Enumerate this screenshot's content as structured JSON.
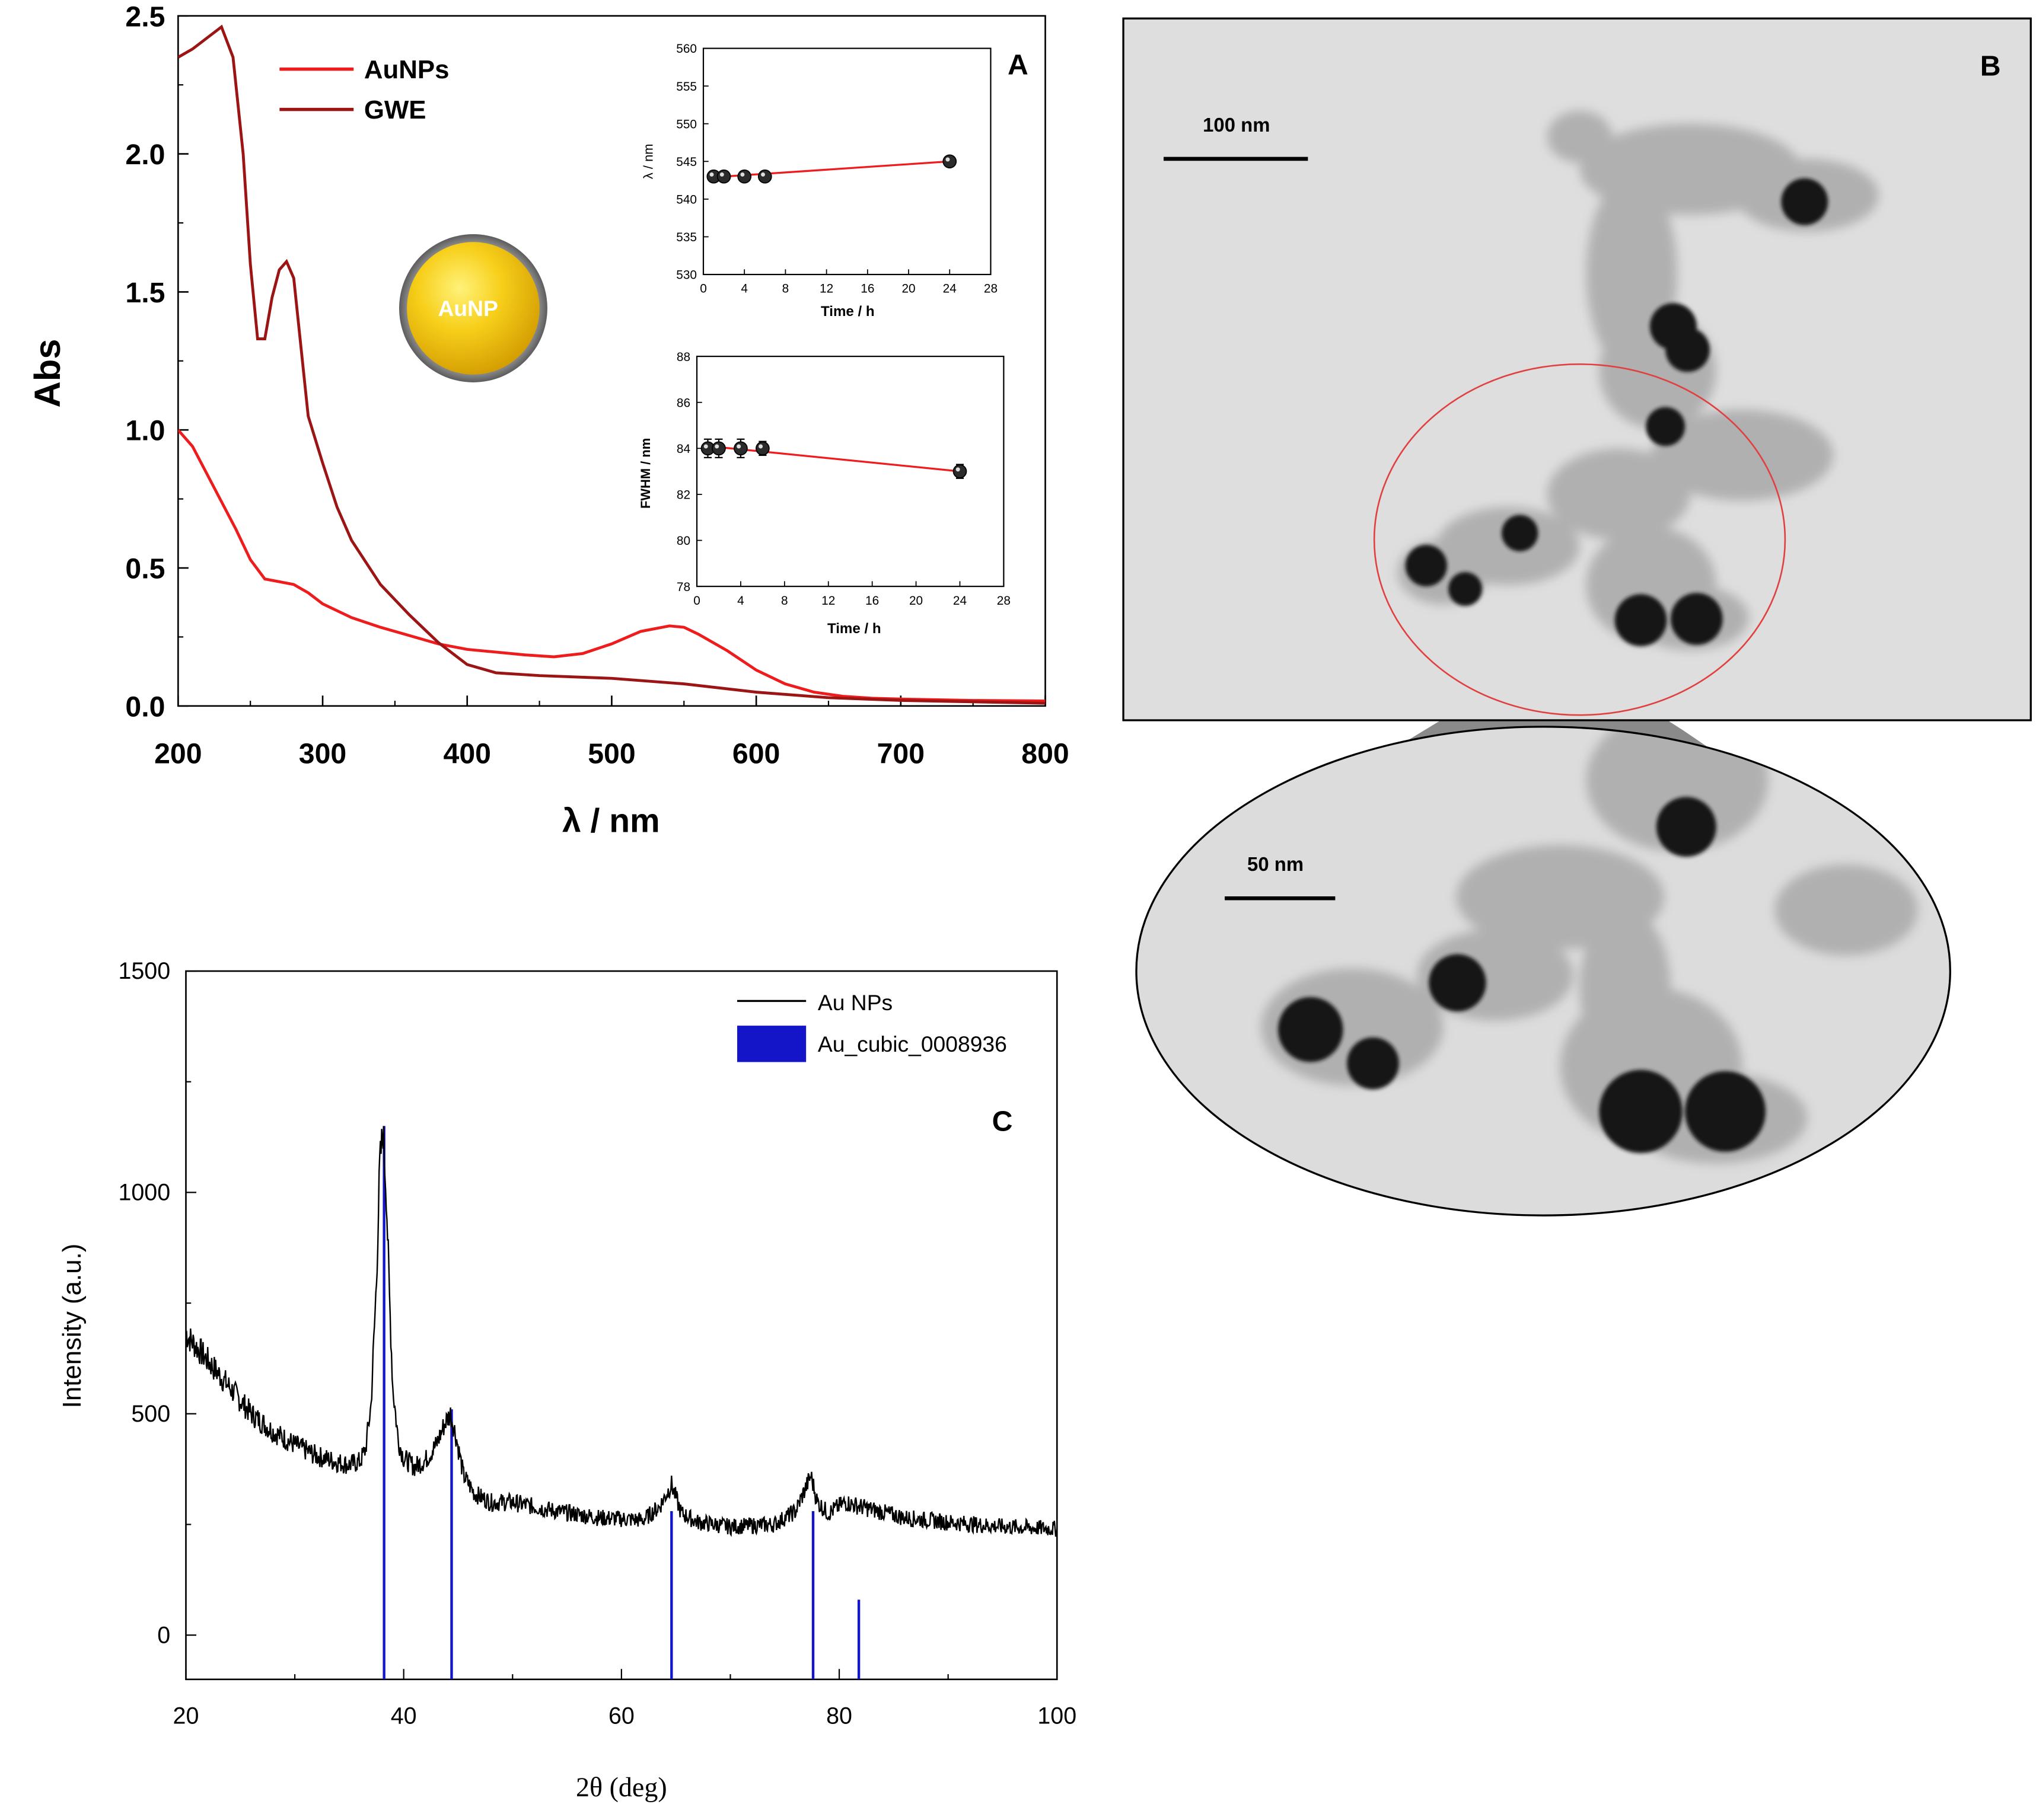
{
  "colors": {
    "aunps": "#ee1c1c",
    "gwe": "#9b1515",
    "xrd": "#000000",
    "ref": "#1414c8",
    "inset_fit": "#ee1c1c",
    "circle": "#e04040",
    "tem_bg": "#dcdcdc",
    "particle": "#111111",
    "shell": "#9a9a9a"
  },
  "panel_a": {
    "label": "A",
    "nanoparticle_label": "AuNP",
    "chart_data": {
      "type": "line",
      "title": "",
      "xlabel": "λ / nm",
      "ylabel": "Abs",
      "xlim": [
        200,
        800
      ],
      "ylim": [
        0,
        2.5
      ],
      "x_ticks": [
        "200",
        "300",
        "400",
        "500",
        "600",
        "700",
        "800"
      ],
      "y_ticks": [
        "0.0",
        "0.5",
        "1.0",
        "1.5",
        "2.0",
        "2.5"
      ],
      "legend_position": "top-left",
      "series": [
        {
          "name": "AuNPs",
          "color_key": "aunps",
          "x": [
            200,
            210,
            220,
            230,
            240,
            250,
            260,
            270,
            280,
            290,
            300,
            320,
            340,
            360,
            380,
            400,
            420,
            440,
            460,
            480,
            500,
            520,
            540,
            550,
            560,
            580,
            600,
            620,
            640,
            660,
            680,
            700,
            750,
            800
          ],
          "y": [
            1.0,
            0.94,
            0.84,
            0.74,
            0.64,
            0.53,
            0.46,
            0.45,
            0.44,
            0.41,
            0.37,
            0.32,
            0.285,
            0.255,
            0.225,
            0.205,
            0.195,
            0.185,
            0.178,
            0.19,
            0.225,
            0.27,
            0.29,
            0.285,
            0.26,
            0.2,
            0.13,
            0.08,
            0.05,
            0.035,
            0.028,
            0.025,
            0.02,
            0.018
          ]
        },
        {
          "name": "GWE",
          "color_key": "gwe",
          "x": [
            200,
            210,
            220,
            230,
            238,
            245,
            250,
            255,
            260,
            265,
            270,
            275,
            280,
            285,
            290,
            300,
            310,
            320,
            340,
            360,
            380,
            400,
            420,
            450,
            500,
            550,
            600,
            650,
            700,
            750,
            800
          ],
          "y": [
            2.35,
            2.38,
            2.42,
            2.46,
            2.35,
            2.0,
            1.6,
            1.33,
            1.33,
            1.48,
            1.58,
            1.61,
            1.55,
            1.3,
            1.05,
            0.88,
            0.72,
            0.6,
            0.44,
            0.33,
            0.23,
            0.15,
            0.12,
            0.11,
            0.1,
            0.08,
            0.05,
            0.03,
            0.02,
            0.015,
            0.01
          ]
        }
      ]
    },
    "inset_lambda": {
      "chart_data": {
        "type": "scatter",
        "xlabel": "Time / h",
        "ylabel": "λ / nm",
        "xlim": [
          0,
          28
        ],
        "ylim": [
          530,
          560
        ],
        "x_ticks": [
          "0",
          "4",
          "8",
          "12",
          "16",
          "20",
          "24",
          "28"
        ],
        "y_ticks": [
          "530",
          "535",
          "540",
          "545",
          "550",
          "555",
          "560"
        ],
        "x": [
          1,
          2,
          4,
          6,
          24
        ],
        "y": [
          543,
          543,
          543,
          543,
          545
        ],
        "error": [
          0.5,
          0.5,
          0.5,
          0.5,
          0.5
        ],
        "fit": {
          "x": [
            1,
            24
          ],
          "y": [
            542.9,
            545.0
          ]
        }
      }
    },
    "inset_fwhm": {
      "chart_data": {
        "type": "scatter",
        "xlabel": "Time / h",
        "ylabel": "FWHM / nm",
        "xlim": [
          0,
          28
        ],
        "ylim": [
          78,
          88
        ],
        "x_ticks": [
          "0",
          "4",
          "8",
          "12",
          "16",
          "20",
          "24",
          "28"
        ],
        "y_ticks": [
          "78",
          "80",
          "82",
          "84",
          "86",
          "88"
        ],
        "x": [
          1,
          2,
          4,
          6,
          24
        ],
        "y": [
          84,
          84,
          84,
          84,
          83
        ],
        "error": [
          0.4,
          0.4,
          0.4,
          0.3,
          0.3
        ],
        "fit": {
          "x": [
            1,
            24
          ],
          "y": [
            84.1,
            83.0
          ]
        }
      }
    }
  },
  "panel_b": {
    "label": "B",
    "scale_bar_main": "100 nm",
    "scale_bar_zoom": "50 nm"
  },
  "panel_c": {
    "label": "C",
    "chart_data": {
      "type": "line",
      "title": "",
      "xlabel": "2θ (deg)",
      "ylabel": "Intensity (a.u.)",
      "xlim": [
        20,
        100
      ],
      "ylim": [
        -100,
        1500
      ],
      "x_ticks": [
        "20",
        "40",
        "60",
        "80",
        "100"
      ],
      "y_ticks": [
        "0",
        "500",
        "1000",
        "1500"
      ],
      "legend_position": "top-right",
      "series": [
        {
          "name": "Au NPs",
          "color_key": "xrd",
          "x": [
            20,
            22,
            24,
            26,
            28,
            30,
            32,
            34,
            35,
            36,
            36.5,
            37,
            37.5,
            37.8,
            38.1,
            38.4,
            38.7,
            39,
            39.5,
            40,
            41,
            42,
            43,
            43.8,
            44.3,
            44.8,
            45.5,
            46.5,
            48,
            50,
            54,
            58,
            62,
            63.5,
            64.6,
            65.5,
            67,
            70,
            74,
            76,
            77.4,
            78,
            79,
            80.5,
            82,
            86,
            90,
            95,
            100
          ],
          "y": [
            680,
            620,
            560,
            500,
            460,
            430,
            405,
            390,
            385,
            392,
            420,
            520,
            800,
            1060,
            1140,
            1000,
            760,
            560,
            440,
            400,
            380,
            395,
            430,
            480,
            500,
            450,
            360,
            320,
            300,
            300,
            280,
            265,
            260,
            290,
            340,
            275,
            255,
            245,
            250,
            280,
            360,
            300,
            275,
            300,
            290,
            265,
            255,
            245,
            240
          ]
        },
        {
          "name": "Au_cubic_0008936",
          "color_key": "ref",
          "type": "stick",
          "x": [
            38.2,
            44.4,
            64.6,
            77.6,
            81.8
          ],
          "y": [
            1150,
            510,
            280,
            280,
            80
          ]
        }
      ]
    }
  }
}
